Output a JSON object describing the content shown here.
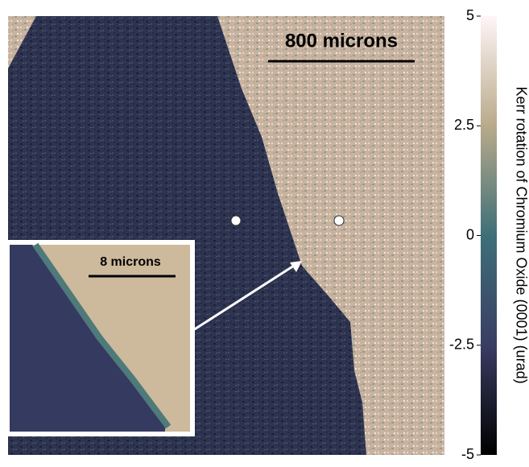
{
  "chart_data": {
    "type": "image",
    "colorbar": {
      "label": "Kerr rotation of Chromium Oxide (0001)  (urad)",
      "clim": [
        -5,
        5
      ],
      "ticks": [
        5,
        2.5,
        0,
        -2.5,
        -5
      ]
    },
    "scale_bar": "800 microns",
    "inset": {
      "scale_bar": "8 microns"
    }
  }
}
